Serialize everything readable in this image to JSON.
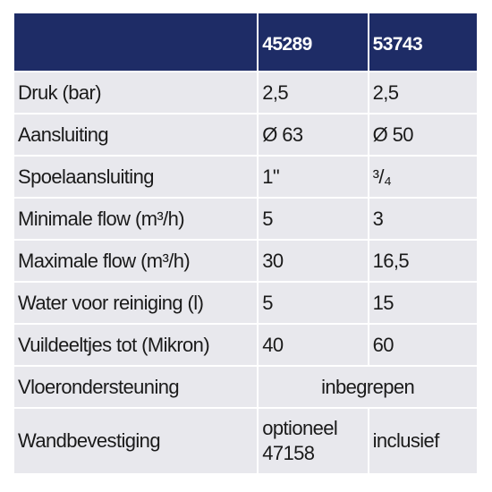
{
  "table": {
    "headers": [
      "",
      "45289",
      "53743"
    ],
    "rows": [
      {
        "label": "Druk (bar)",
        "a": "2,5",
        "b": "2,5"
      },
      {
        "label": "Aansluiting",
        "a": "Ø 63",
        "b": "Ø 50"
      },
      {
        "label": "Spoelaansluiting",
        "a": "1\"",
        "b": "³/₄"
      },
      {
        "label": "Minimale flow (m³/h)",
        "a": "5",
        "b": "3"
      },
      {
        "label": "Maximale flow (m³/h)",
        "a": "30",
        "b": "16,5"
      },
      {
        "label": "Water voor reiniging (l)",
        "a": "5",
        "b": "15"
      },
      {
        "label": "Vuildeeltjes tot (Mikron)",
        "a": "40",
        "b": "60"
      },
      {
        "label": "Vloerondersteuning",
        "span": "inbegrepen"
      },
      {
        "label": "Wandbevestiging",
        "a": "optioneel 47158",
        "b": "inclusief"
      }
    ]
  },
  "colors": {
    "header_bg": "#1e2c66",
    "cell_bg": "#e8e8ed"
  }
}
